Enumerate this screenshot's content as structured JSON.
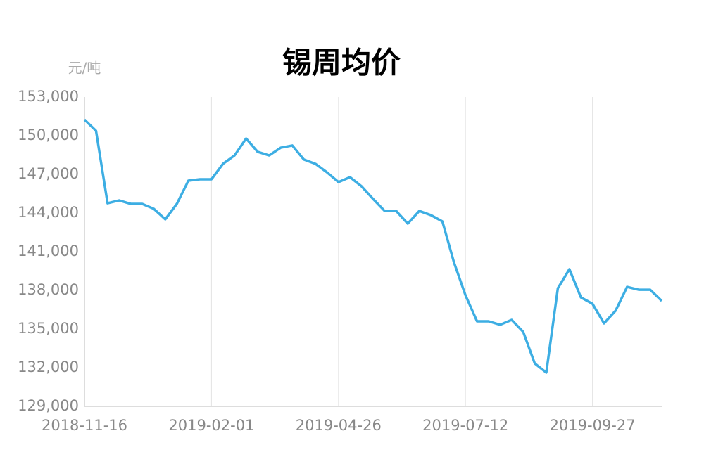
{
  "chart_data": {
    "type": "line",
    "title": "锡周均价",
    "y_unit": "元/吨",
    "categories": [
      "2018-11-16",
      null,
      null,
      null,
      null,
      null,
      null,
      null,
      null,
      null,
      null,
      "2019-02-01",
      null,
      null,
      null,
      null,
      null,
      null,
      null,
      null,
      null,
      null,
      "2019-04-26",
      null,
      null,
      null,
      null,
      null,
      null,
      null,
      null,
      null,
      null,
      "2019-07-12",
      null,
      null,
      null,
      null,
      null,
      null,
      null,
      null,
      null,
      null,
      "2019-09-27",
      null,
      null,
      null,
      null,
      null,
      null
    ],
    "series": [
      {
        "color": "#3daee3",
        "values": [
          151250,
          150380,
          144760,
          144980,
          144710,
          144710,
          144330,
          143510,
          144710,
          146510,
          146620,
          146620,
          147820,
          148470,
          149780,
          148750,
          148470,
          149070,
          149240,
          148150,
          147820,
          147160,
          146400,
          146780,
          146070,
          145090,
          144160,
          144160,
          143180,
          144160,
          143840,
          143350,
          140180,
          137620,
          135600,
          135600,
          135330,
          135710,
          134780,
          132330,
          131620,
          138160,
          139640,
          137450,
          136960,
          135440,
          136420,
          138270,
          138050,
          138050,
          137180
        ]
      }
    ],
    "ylim": [
      129000,
      153000
    ],
    "yticks": [
      {
        "value": 129000,
        "label": "129,000"
      },
      {
        "value": 132000,
        "label": "132,000"
      },
      {
        "value": 135000,
        "label": "135,000"
      },
      {
        "value": 138000,
        "label": "138,000"
      },
      {
        "value": 141000,
        "label": "141,000"
      },
      {
        "value": 144000,
        "label": "144,000"
      },
      {
        "value": 147000,
        "label": "147,000"
      },
      {
        "value": 150000,
        "label": "150,000"
      },
      {
        "value": 153000,
        "label": "153,000"
      }
    ],
    "xgrid": true
  }
}
